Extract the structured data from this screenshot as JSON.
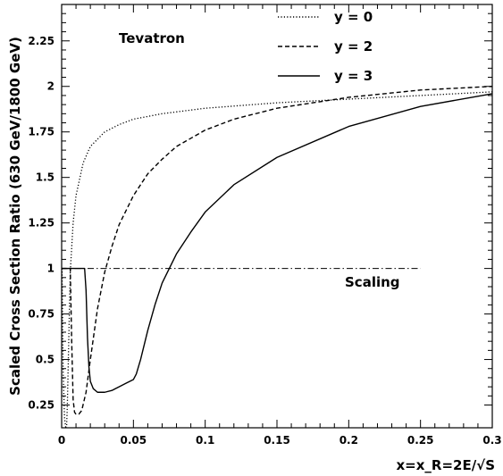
{
  "chart_data": {
    "type": "line",
    "title": "",
    "xlabel": "x=x_R=2E/√S",
    "ylabel": "Scaled Cross Section Ratio (630 GeV/1800 GeV)",
    "xlim": [
      0,
      0.3
    ],
    "ylim": [
      0.125,
      2.45
    ],
    "x_ticks": [
      {
        "value": 0,
        "label": "0"
      },
      {
        "value": 0.05,
        "label": "0.05"
      },
      {
        "value": 0.1,
        "label": "0.1"
      },
      {
        "value": 0.15,
        "label": "0.15"
      },
      {
        "value": 0.2,
        "label": "0.2"
      },
      {
        "value": 0.25,
        "label": "0.25"
      },
      {
        "value": 0.3,
        "label": "0.3"
      }
    ],
    "y_ticks": [
      {
        "value": 0.25,
        "label": "0.25"
      },
      {
        "value": 0.5,
        "label": "0.5"
      },
      {
        "value": 0.75,
        "label": "0.75"
      },
      {
        "value": 1,
        "label": "1"
      },
      {
        "value": 1.25,
        "label": "1.25"
      },
      {
        "value": 1.5,
        "label": "1.5"
      },
      {
        "value": 1.75,
        "label": "1.75"
      },
      {
        "value": 2,
        "label": "2"
      },
      {
        "value": 2.25,
        "label": "2.25"
      }
    ],
    "grid": false,
    "legend_position": "top-right",
    "series": [
      {
        "name": "y = 0",
        "style": "dotted",
        "x": [
          0.0003,
          0.001,
          0.002,
          0.003,
          0.0035,
          0.004,
          0.005,
          0.006,
          0.008,
          0.01,
          0.015,
          0.02,
          0.03,
          0.04,
          0.05,
          0.07,
          0.1,
          0.15,
          0.2,
          0.25,
          0.3
        ],
        "y": [
          1.0,
          0.45,
          0.18,
          0.12,
          0.14,
          0.26,
          0.62,
          0.98,
          1.25,
          1.4,
          1.58,
          1.67,
          1.75,
          1.79,
          1.82,
          1.85,
          1.88,
          1.91,
          1.93,
          1.95,
          1.97
        ]
      },
      {
        "name": "y = 2",
        "style": "dashed",
        "x": [
          0.0003,
          0.004,
          0.006,
          0.007,
          0.008,
          0.009,
          0.01,
          0.012,
          0.014,
          0.017,
          0.02,
          0.025,
          0.03,
          0.035,
          0.04,
          0.05,
          0.06,
          0.07,
          0.08,
          0.1,
          0.12,
          0.15,
          0.2,
          0.25,
          0.3
        ],
        "y": [
          1.0,
          1.0,
          1.0,
          0.6,
          0.28,
          0.21,
          0.2,
          0.2,
          0.22,
          0.32,
          0.5,
          0.78,
          0.98,
          1.12,
          1.24,
          1.4,
          1.52,
          1.6,
          1.67,
          1.76,
          1.82,
          1.88,
          1.94,
          1.98,
          2.0
        ]
      },
      {
        "name": "y = 3",
        "style": "solid",
        "x": [
          0.0003,
          0.016,
          0.017,
          0.018,
          0.019,
          0.02,
          0.022,
          0.025,
          0.03,
          0.035,
          0.04,
          0.045,
          0.05,
          0.052,
          0.055,
          0.06,
          0.065,
          0.07,
          0.075,
          0.08,
          0.09,
          0.1,
          0.12,
          0.15,
          0.2,
          0.25,
          0.3
        ],
        "y": [
          1.0,
          1.0,
          0.88,
          0.62,
          0.46,
          0.38,
          0.34,
          0.32,
          0.32,
          0.33,
          0.35,
          0.37,
          0.39,
          0.42,
          0.5,
          0.66,
          0.8,
          0.92,
          1.0,
          1.08,
          1.2,
          1.31,
          1.46,
          1.61,
          1.78,
          1.89,
          1.96
        ]
      }
    ],
    "reference_line": {
      "label": "Scaling",
      "y": 1.0,
      "x_start": 0.0,
      "x_end": 0.25,
      "style": "dash-dot"
    },
    "annotations": [
      {
        "text": "Tevatron",
        "x": 0.04,
        "y": 2.2
      },
      {
        "text": "Scaling",
        "x": 0.198,
        "y": 0.9
      }
    ]
  }
}
